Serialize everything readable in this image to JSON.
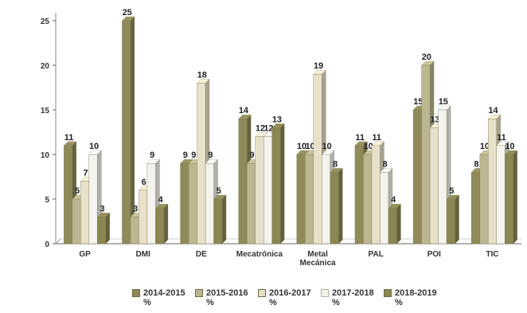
{
  "chart_data": {
    "type": "bar",
    "categories": [
      "GP",
      "DMI",
      "DE",
      "Mecatrónica",
      "Metal\nMecánica",
      "PAL",
      "POI",
      "TIC"
    ],
    "series": [
      {
        "name": "2014-2015\n%",
        "values": [
          11,
          25,
          9,
          14,
          10,
          11,
          15,
          8
        ],
        "color": "#8f8a58"
      },
      {
        "name": "2015-2016\n%",
        "values": [
          5,
          3,
          9,
          9,
          10,
          10,
          20,
          10
        ],
        "color": "#bcb790"
      },
      {
        "name": "2016-2017\n%",
        "values": [
          7,
          6,
          18,
          12,
          19,
          11,
          13,
          14
        ],
        "color": "#e8e0c8"
      },
      {
        "name": "2017-2018\n%",
        "values": [
          10,
          9,
          9,
          12,
          10,
          8,
          15,
          11
        ],
        "color": "#f4f3ee"
      },
      {
        "name": "2018-2019\n%",
        "values": [
          3,
          4,
          5,
          13,
          8,
          4,
          5,
          10
        ],
        "color": "#8b8652"
      }
    ],
    "ylim": [
      0,
      25
    ],
    "yticks": [
      0,
      5,
      10,
      15,
      20,
      25
    ],
    "grid": false,
    "legend_position": "bottom"
  }
}
